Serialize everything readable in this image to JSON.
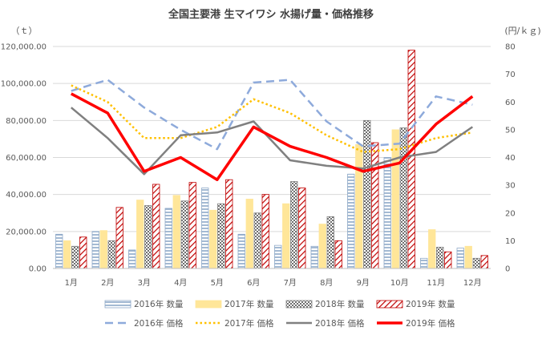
{
  "chart_data": {
    "type": "bar+line",
    "title": "全国主要港 生マイワシ 水揚げ量・価格推移",
    "ylabel": "（ｔ）",
    "y2label": "(円/ｋｇ)",
    "ylim": [
      0,
      120000
    ],
    "y2lim": [
      0,
      80
    ],
    "yticks": [
      0,
      20000,
      40000,
      60000,
      80000,
      100000,
      120000
    ],
    "ytick_labels": [
      "0.00",
      "20,000.00",
      "40,000.00",
      "60,000.00",
      "80,000.00",
      "100,000.00",
      "120,000.00"
    ],
    "y2ticks": [
      0,
      10,
      20,
      30,
      40,
      50,
      60,
      70,
      80
    ],
    "y2tick_labels": [
      "0",
      "10",
      "20",
      "30",
      "40",
      "50",
      "60",
      "70",
      "80"
    ],
    "categories": [
      "1月",
      "2月",
      "3月",
      "4月",
      "5月",
      "6月",
      "7月",
      "8月",
      "9月",
      "10月",
      "11月",
      "12月"
    ],
    "bar_series": [
      {
        "name": "2016年 数量",
        "pattern": "hlines",
        "color": "#8ea9c8",
        "values": [
          18500,
          20000,
          10000,
          32500,
          43500,
          18500,
          12500,
          12000,
          51000,
          60000,
          5500,
          11000
        ]
      },
      {
        "name": "2017年 数量",
        "pattern": "solid",
        "color": "#ffe699",
        "values": [
          15000,
          20500,
          37000,
          39500,
          31500,
          37500,
          35000,
          24000,
          67000,
          75000,
          21000,
          12000
        ]
      },
      {
        "name": "2018年 数量",
        "pattern": "cross",
        "color": "#7f7f7f",
        "values": [
          12000,
          15000,
          34000,
          36500,
          35000,
          30000,
          47000,
          28000,
          80000,
          76000,
          11500,
          5500
        ]
      },
      {
        "name": "2019年 数量",
        "pattern": "diag",
        "color": "#c00000",
        "values": [
          17000,
          33000,
          45500,
          46500,
          48000,
          40000,
          43500,
          15000,
          68000,
          118000,
          9000,
          7000
        ]
      }
    ],
    "line_series": [
      {
        "name": "2016年 価格",
        "style": "dashed",
        "color": "#8eaadb",
        "width": 2.5,
        "values": [
          64,
          68,
          58,
          50,
          43,
          67,
          68,
          53,
          44,
          45,
          62,
          59
        ]
      },
      {
        "name": "2017年 価格",
        "style": "dotted",
        "color": "#ffc000",
        "width": 2.5,
        "values": [
          66,
          60,
          47,
          47,
          51,
          61,
          56,
          48,
          42,
          43,
          47,
          49
        ]
      },
      {
        "name": "2018年 価格",
        "style": "solid",
        "color": "#808080",
        "width": 2.5,
        "values": [
          58,
          47,
          34,
          48,
          49,
          53,
          39,
          37,
          36,
          40,
          42,
          51
        ]
      },
      {
        "name": "2019年 価格",
        "style": "solid",
        "color": "#ff0000",
        "width": 3.5,
        "values": [
          63,
          56,
          35,
          40,
          32,
          51,
          44,
          40,
          35,
          38,
          52,
          62
        ]
      }
    ],
    "grid": true,
    "legend_position": "bottom"
  }
}
